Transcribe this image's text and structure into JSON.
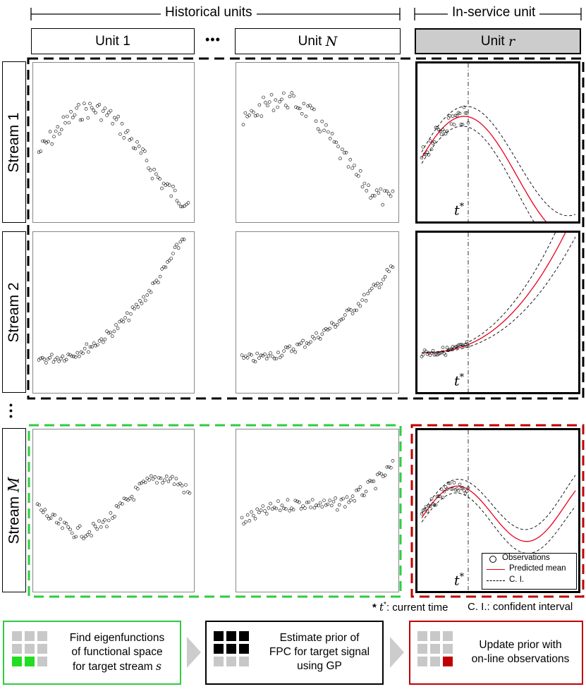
{
  "header": {
    "historical_label": "Historical units",
    "inservice_label": "In-service unit",
    "ellipsis_units": "•••",
    "ellipsis_streams": "•\n•\n•"
  },
  "units": {
    "unit1": {
      "prefix": "Unit ",
      "var": "1"
    },
    "unitN": {
      "prefix": "Unit ",
      "var": "N"
    },
    "unitR": {
      "prefix": "Unit ",
      "var": "r"
    }
  },
  "streams": {
    "s1": {
      "prefix": "Stream ",
      "var": "1"
    },
    "s2": {
      "prefix": "Stream ",
      "var": "2"
    },
    "sM": {
      "prefix": "Stream ",
      "var": "M"
    }
  },
  "tstar": {
    "t": "t",
    "sup": "*"
  },
  "legend": {
    "observations": "Observations",
    "predicted_mean": "Predicted mean",
    "ci": "C. I."
  },
  "notes": {
    "current_time": ": current time",
    "current_time_star": "* ",
    "ci_note": "C. I.: confident interval"
  },
  "steps": [
    {
      "line1": "Find eigenfunctions",
      "line2": "of functional space",
      "line3_prefix": "for target stream ",
      "line3_var": "s"
    },
    {
      "line1": "Estimate prior of",
      "line2": "FPC for  target signal",
      "line3": "using GP"
    },
    {
      "line1": "Update prior with",
      "line2": "on-line observations"
    }
  ],
  "colors": {
    "green": "#2ecc40",
    "green_fill": "#22dd22",
    "red": "#c00000",
    "red_curve": "#e8001c",
    "gray_block": "#c8c8c8",
    "dark_block": "#000000",
    "arrow_gray": "#cccccc",
    "unit_r_fill": "#cccccc"
  },
  "icons": [
    "chevron-right-arrow",
    "grid-blocks-icon"
  ]
}
